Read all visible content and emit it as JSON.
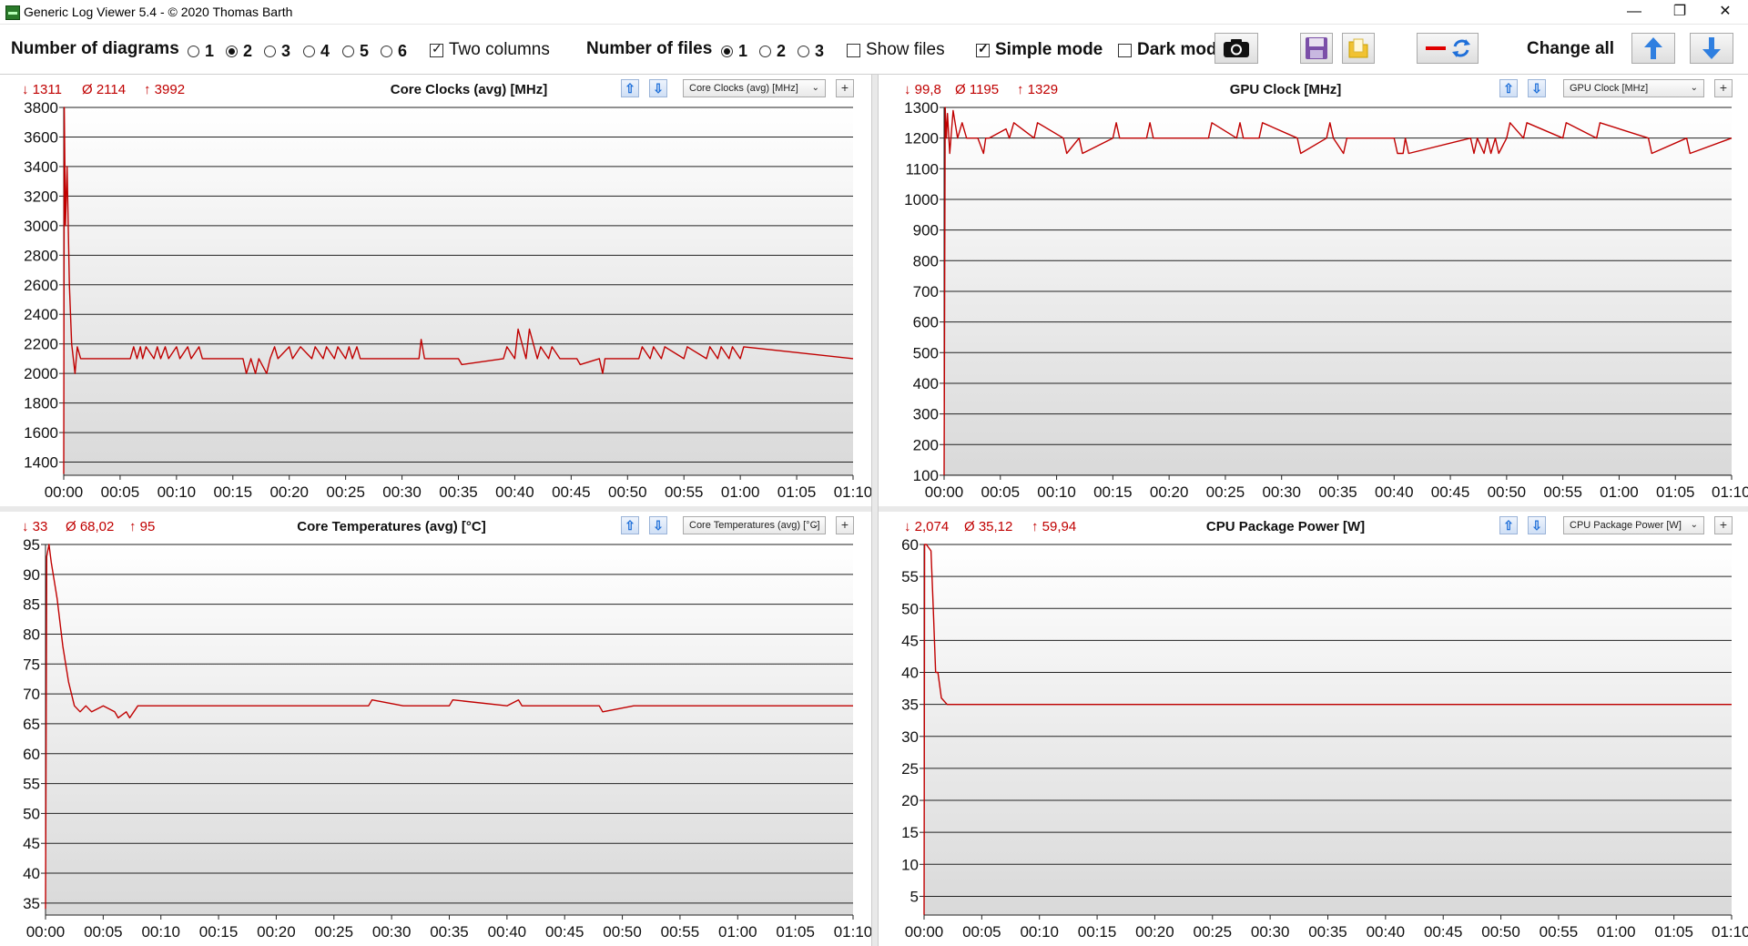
{
  "window": {
    "title": "Generic Log Viewer 5.4 - © 2020 Thomas Barth",
    "minimize": "—",
    "restore": "❐",
    "close": "✕"
  },
  "toolbar": {
    "num_diagrams_label": "Number of diagrams",
    "diagram_options": [
      "1",
      "2",
      "3",
      "4",
      "5",
      "6"
    ],
    "diagram_selected": "2",
    "two_columns_label": "Two columns",
    "two_columns_checked": true,
    "num_files_label": "Number of files",
    "file_options": [
      "1",
      "2",
      "3"
    ],
    "file_selected": "1",
    "show_files_label": "Show files",
    "show_files_checked": false,
    "simple_mode_label": "Simple mode",
    "simple_mode_checked": true,
    "dark_mode_label": "Dark mod",
    "dark_mode_checked": false,
    "change_all_label": "Change all",
    "icons": [
      "camera-icon",
      "save-icon",
      "folder-icon",
      "red-line-icon",
      "refresh-icon",
      "arrow-up-icon",
      "arrow-down-icon"
    ]
  },
  "panels": [
    {
      "title": "Core Clocks (avg) [MHz]",
      "min": "↓ 1311",
      "avg": "Ø 2114",
      "max": "↑ 3992",
      "select": "Core Clocks (avg) [MHz]"
    },
    {
      "title": "GPU Clock [MHz]",
      "min": "↓ 99,8",
      "avg": "Ø 1195",
      "max": "↑ 1329",
      "select": "GPU Clock [MHz]"
    },
    {
      "title": "Core Temperatures (avg) [°C]",
      "min": "↓ 33",
      "avg": "Ø 68,02",
      "max": "↑ 95",
      "select": "Core Temperatures (avg) [°C]"
    },
    {
      "title": "CPU Package Power [W]",
      "min": "↓ 2,074",
      "avg": "Ø 35,12",
      "max": "↑ 59,94",
      "select": "CPU Package Power [W]"
    }
  ],
  "chart_data": [
    {
      "type": "line",
      "title": "Core Clocks (avg) [MHz]",
      "ylim": [
        1311,
        3800
      ],
      "yticks": [
        1400,
        1600,
        1800,
        2000,
        2200,
        2400,
        2600,
        2800,
        3000,
        3200,
        3400,
        3600,
        3800
      ],
      "xticks": [
        "00:00",
        "00:05",
        "00:10",
        "00:15",
        "00:20",
        "00:25",
        "00:30",
        "00:35",
        "00:40",
        "00:45",
        "00:50",
        "00:55",
        "01:00",
        "01:05",
        "01:10"
      ],
      "xlim_min": [
        0,
        70
      ],
      "color": "#c00000",
      "series": [
        {
          "x": [
            0,
            0.05,
            0.15,
            0.3,
            0.5,
            0.7,
            1.0,
            1.2,
            1.5,
            3,
            5.9,
            6.2,
            6.5,
            6.8,
            7,
            7.3,
            8,
            8.3,
            8.6,
            9,
            9.3,
            10,
            10.3,
            11,
            11.3,
            12,
            12.3,
            13,
            15.9,
            16.2,
            16.6,
            17,
            17.3,
            18,
            18.3,
            18.7,
            19,
            20,
            20.3,
            21,
            22,
            22.3,
            23,
            23.3,
            24,
            24.3,
            25,
            25.3,
            25.6,
            26,
            26.3,
            27,
            31.5,
            31.7,
            32,
            35,
            35.3,
            39,
            39.3,
            40,
            40.3,
            41,
            41.3,
            42,
            42.3,
            43,
            43.3,
            44,
            45.5,
            45.8,
            47.5,
            47.8,
            48,
            51,
            51.3,
            52,
            52.3,
            53,
            53.3,
            55,
            55.3,
            57,
            57.3,
            58,
            58.3,
            59,
            59.3,
            60,
            60.3,
            70
          ],
          "y": [
            1320,
            3800,
            3000,
            3400,
            2600,
            2200,
            2000,
            2180,
            2100,
            2100,
            2100,
            2180,
            2100,
            2180,
            2100,
            2180,
            2100,
            2180,
            2100,
            2180,
            2100,
            2180,
            2100,
            2180,
            2100,
            2180,
            2100,
            2100,
            2100,
            2000,
            2100,
            2000,
            2100,
            2000,
            2100,
            2180,
            2100,
            2180,
            2100,
            2180,
            2100,
            2180,
            2100,
            2180,
            2100,
            2180,
            2100,
            2180,
            2100,
            2180,
            2100,
            2100,
            2100,
            2230,
            2100,
            2100,
            2060,
            2100,
            2180,
            2100,
            2300,
            2100,
            2300,
            2100,
            2180,
            2100,
            2180,
            2100,
            2100,
            2060,
            2100,
            2000,
            2100,
            2100,
            2180,
            2100,
            2180,
            2100,
            2180,
            2100,
            2180,
            2100,
            2180,
            2100,
            2180,
            2100,
            2180,
            2100,
            2180,
            2100
          ]
        }
      ]
    },
    {
      "type": "line",
      "title": "GPU Clock [MHz]",
      "ylim": [
        99.8,
        1300
      ],
      "yticks": [
        100,
        200,
        300,
        400,
        500,
        600,
        700,
        800,
        900,
        1000,
        1100,
        1200,
        1300
      ],
      "xticks": [
        "00:00",
        "00:05",
        "00:10",
        "00:15",
        "00:20",
        "00:25",
        "00:30",
        "00:35",
        "00:40",
        "00:45",
        "00:50",
        "00:55",
        "01:00",
        "01:05",
        "01:10"
      ],
      "xlim_min": [
        0,
        70
      ],
      "color": "#c00000",
      "series": [
        {
          "x": [
            0,
            0.1,
            0.2,
            0.3,
            0.5,
            0.8,
            1.2,
            1.6,
            2,
            3,
            3.5,
            3.7,
            4,
            5.5,
            5.8,
            6.2,
            8,
            8.3,
            10.6,
            10.9,
            12,
            12.3,
            15,
            15.3,
            15.6,
            18,
            18.3,
            18.6,
            23.5,
            23.8,
            26,
            26.3,
            26.6,
            28,
            28.3,
            31.4,
            31.7,
            34,
            34.3,
            34.6,
            35.5,
            35.8,
            36,
            40,
            40.3,
            40.8,
            41,
            41.3,
            46.8,
            47.1,
            47.4,
            48,
            48.3,
            48.6,
            49,
            49.3,
            50,
            50.3,
            51.5,
            51.8,
            55,
            55.3,
            58,
            58.3,
            62.6,
            62.9,
            66,
            66.3,
            70
          ],
          "y": [
            100,
            1300,
            1200,
            1280,
            1150,
            1290,
            1200,
            1250,
            1200,
            1200,
            1150,
            1200,
            1200,
            1230,
            1200,
            1250,
            1200,
            1250,
            1200,
            1150,
            1200,
            1150,
            1200,
            1250,
            1200,
            1200,
            1250,
            1200,
            1200,
            1250,
            1200,
            1250,
            1200,
            1200,
            1250,
            1200,
            1150,
            1200,
            1250,
            1200,
            1150,
            1200,
            1200,
            1200,
            1150,
            1150,
            1200,
            1150,
            1200,
            1150,
            1200,
            1150,
            1200,
            1150,
            1200,
            1150,
            1200,
            1250,
            1200,
            1250,
            1200,
            1250,
            1200,
            1250,
            1200,
            1150,
            1200,
            1150,
            1200
          ]
        }
      ]
    },
    {
      "type": "line",
      "title": "Core Temperatures (avg) [°C]",
      "ylim": [
        33,
        95
      ],
      "yticks": [
        35,
        40,
        45,
        50,
        55,
        60,
        65,
        70,
        75,
        80,
        85,
        90,
        95
      ],
      "xticks": [
        "00:00",
        "00:05",
        "00:10",
        "00:15",
        "00:20",
        "00:25",
        "00:30",
        "00:35",
        "00:40",
        "00:45",
        "00:50",
        "00:55",
        "01:00",
        "01:05",
        "01:10"
      ],
      "xlim_min": [
        0,
        70
      ],
      "color": "#c00000",
      "series": [
        {
          "x": [
            0,
            0.1,
            0.3,
            0.5,
            1,
            1.5,
            2,
            2.5,
            3,
            3.5,
            4,
            5,
            6,
            6.3,
            7,
            7.3,
            8,
            10,
            13,
            20,
            25,
            28,
            28.3,
            31,
            35,
            35.3,
            40,
            41,
            41.3,
            42,
            45,
            48,
            48.3,
            51,
            55,
            60,
            63,
            70
          ],
          "y": [
            34,
            93,
            95,
            92,
            86,
            78,
            72,
            68,
            67,
            68,
            67,
            68,
            67,
            66,
            67,
            66,
            68,
            68,
            68,
            68,
            68,
            68,
            69,
            68,
            68,
            69,
            68,
            69,
            68,
            68,
            68,
            68,
            67,
            68,
            68,
            68,
            68,
            68
          ]
        }
      ]
    },
    {
      "type": "line",
      "title": "CPU Package Power [W]",
      "ylim": [
        2.074,
        60
      ],
      "yticks": [
        5,
        10,
        15,
        20,
        25,
        30,
        35,
        40,
        45,
        50,
        55,
        60
      ],
      "xticks": [
        "00:00",
        "00:05",
        "00:10",
        "00:15",
        "00:20",
        "00:25",
        "00:30",
        "00:35",
        "00:40",
        "00:45",
        "00:50",
        "00:55",
        "01:00",
        "01:05",
        "01:10"
      ],
      "xlim_min": [
        0,
        70
      ],
      "color": "#c00000",
      "series": [
        {
          "x": [
            0,
            0.05,
            0.2,
            0.6,
            0.8,
            1.0,
            1.2,
            1.5,
            2,
            10,
            30,
            50,
            70
          ],
          "y": [
            2.1,
            60,
            60,
            59,
            50,
            40,
            40,
            36,
            35,
            35,
            35,
            35,
            35
          ]
        }
      ]
    }
  ]
}
